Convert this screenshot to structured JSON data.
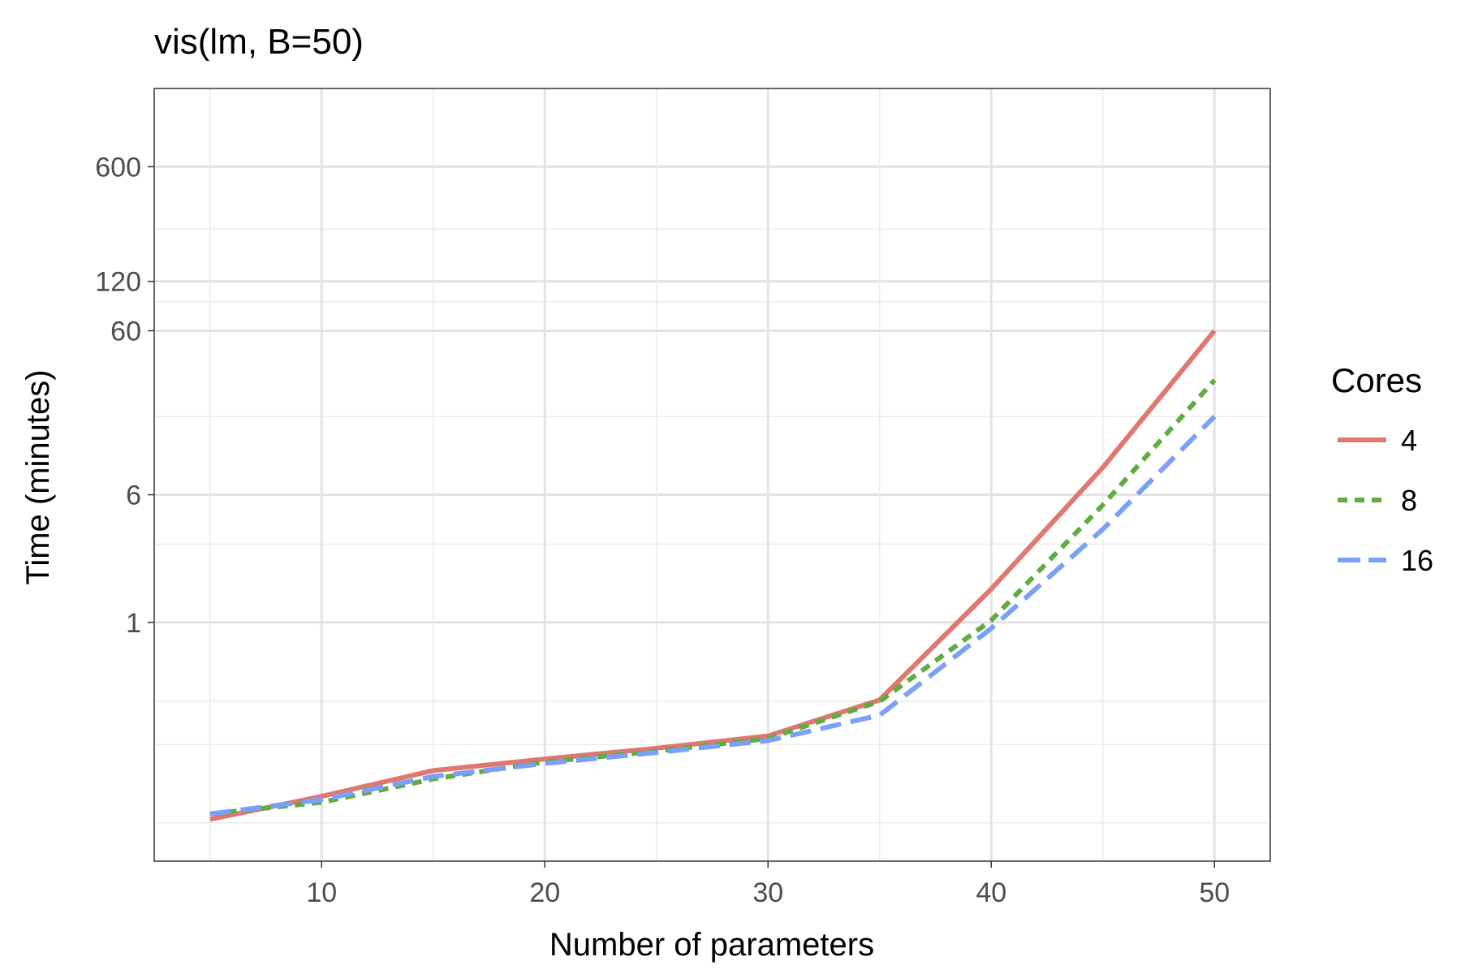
{
  "chart_data": {
    "type": "line",
    "title": "vis(lm, B=50)",
    "xlabel": "Number of parameters",
    "ylabel": "Time (minutes)",
    "y_scale": "log",
    "xlim": [
      2.5,
      52.5
    ],
    "ylim": [
      0.035,
      1800
    ],
    "x_ticks": [
      10,
      20,
      30,
      40,
      50
    ],
    "x_tick_labels": [
      "10",
      "20",
      "30",
      "40",
      "50"
    ],
    "x_minor_ticks": [
      5,
      15,
      25,
      35,
      45
    ],
    "y_ticks": [
      1,
      6,
      60,
      120,
      600
    ],
    "y_tick_labels": [
      "1",
      "6",
      "60",
      "120",
      "600"
    ],
    "y_minor_ticks": [
      0.06,
      0.18,
      0.33,
      3,
      18,
      90,
      250
    ],
    "grid": true,
    "legend": {
      "title": "Cores",
      "position": "right"
    },
    "x": [
      5,
      10,
      15,
      20,
      25,
      30,
      35,
      40,
      45,
      50
    ],
    "series": [
      {
        "name": "4",
        "color": "#e07870",
        "dash": "solid",
        "values": [
          0.063,
          0.087,
          0.125,
          0.147,
          0.171,
          0.203,
          0.337,
          1.6,
          8.8,
          60
        ]
      },
      {
        "name": "8",
        "color": "#5fad41",
        "dash": "dotted",
        "values": [
          0.068,
          0.08,
          0.111,
          0.141,
          0.164,
          0.196,
          0.33,
          1.03,
          5.2,
          30
        ]
      },
      {
        "name": "16",
        "color": "#7aa0f8",
        "dash": "dashed",
        "values": [
          0.068,
          0.083,
          0.115,
          0.138,
          0.161,
          0.19,
          0.272,
          0.92,
          3.7,
          18
        ]
      }
    ]
  }
}
